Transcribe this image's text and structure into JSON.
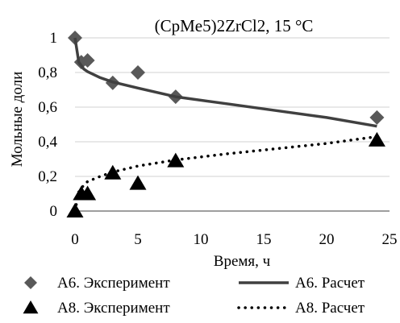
{
  "chart_data": {
    "type": "scatter",
    "title": "(CpMe5)2ZrCl2, 15 °C",
    "xlabel": "Время, ч",
    "ylabel": "Мольные доли",
    "xlim": [
      0,
      25
    ],
    "ylim": [
      0,
      1
    ],
    "x_ticks": [
      0,
      5,
      10,
      15,
      20,
      25
    ],
    "x_tick_labels": [
      "0",
      "5",
      "10",
      "15",
      "20",
      "25"
    ],
    "y_ticks": [
      0,
      0.2,
      0.4,
      0.6,
      0.8,
      1
    ],
    "y_tick_labels": [
      "0",
      "0,2",
      "0,4",
      "0,6",
      "0,8",
      "1"
    ],
    "grid": "horizontal",
    "legend_position": "bottom",
    "series": [
      {
        "name": "A6. Эксперимент",
        "kind": "markers",
        "marker": "diamond",
        "color": "#595959",
        "x": [
          0,
          0.5,
          1,
          3,
          5,
          8,
          24
        ],
        "y": [
          1.0,
          0.86,
          0.87,
          0.74,
          0.8,
          0.66,
          0.54
        ]
      },
      {
        "name": "A6. Расчет",
        "kind": "line",
        "line_style": "solid",
        "color": "#404040",
        "x": [
          0,
          0.3,
          0.7,
          1,
          2,
          3,
          5,
          8,
          12,
          16,
          20,
          24
        ],
        "y": [
          1.0,
          0.86,
          0.82,
          0.805,
          0.77,
          0.745,
          0.71,
          0.66,
          0.62,
          0.58,
          0.54,
          0.49
        ]
      },
      {
        "name": "A8. Эксперимент",
        "kind": "markers",
        "marker": "triangle",
        "color": "#000000",
        "x": [
          0,
          0.5,
          1,
          3,
          5,
          8,
          24
        ],
        "y": [
          0.0,
          0.1,
          0.1,
          0.22,
          0.16,
          0.29,
          0.41
        ]
      },
      {
        "name": "A8. Расчет",
        "kind": "line",
        "line_style": "dotted",
        "color": "#000000",
        "x": [
          0,
          0.3,
          0.7,
          1,
          2,
          3,
          5,
          8,
          12,
          16,
          20,
          24
        ],
        "y": [
          0.0,
          0.11,
          0.15,
          0.17,
          0.2,
          0.225,
          0.26,
          0.295,
          0.33,
          0.36,
          0.39,
          0.43
        ]
      }
    ]
  }
}
